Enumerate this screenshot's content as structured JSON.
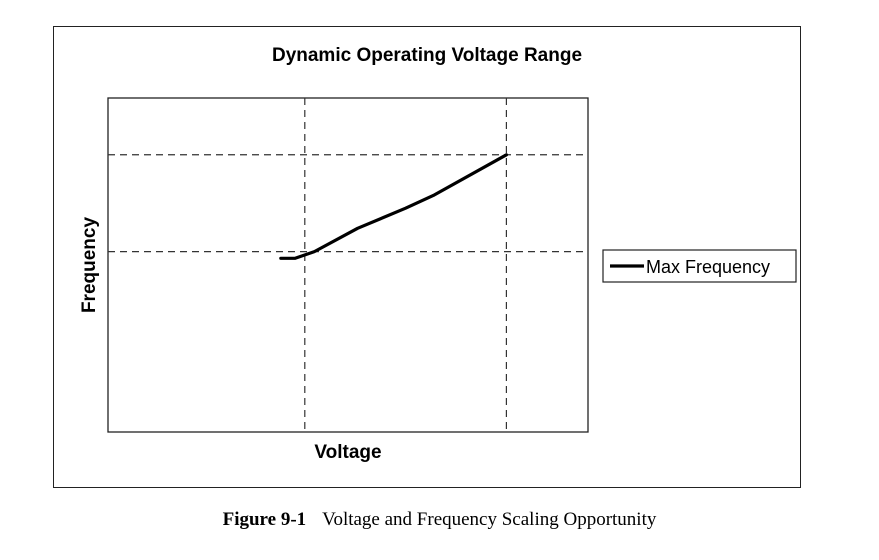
{
  "chart_data": {
    "type": "line",
    "title": "Dynamic Operating Voltage Range",
    "xlabel": "Voltage",
    "ylabel": "Frequency",
    "xlim": [
      0,
      1
    ],
    "ylim": [
      0,
      1
    ],
    "x_reference_lines": [
      0.41,
      0.83
    ],
    "y_reference_lines": [
      0.54,
      0.83
    ],
    "grid": false,
    "legend_position": "right",
    "series": [
      {
        "name": "Max Frequency",
        "color": "#000000",
        "x": [
          0.36,
          0.39,
          0.43,
          0.52,
          0.62,
          0.68,
          0.83
        ],
        "y": [
          0.52,
          0.52,
          0.54,
          0.61,
          0.67,
          0.71,
          0.83
        ]
      }
    ]
  },
  "caption": {
    "number": "Figure 9-1",
    "text": "Voltage and Frequency Scaling Opportunity"
  }
}
